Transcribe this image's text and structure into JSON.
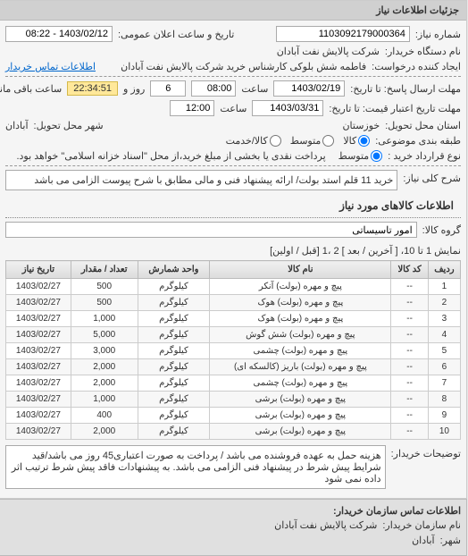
{
  "panel_title": "جزئیات اطلاعات نیاز",
  "top": {
    "req_no_label": "شماره نیاز:",
    "req_no": "1103092179000364",
    "datetime_label": "تاریخ و ساعت اعلان عمومی:",
    "datetime": "1403/02/12 - 08:22",
    "buyer_label": "نام دستگاه خریدار:",
    "buyer": "شرکت پالایش نفت آبادان",
    "requester_label": "ایجاد کننده درخواست:",
    "requester": "فاطمه شش بلوکی کارشناس خرید شرکت پالایش نفت آبادان",
    "contact_link": "اطلاعات تماس خریدار"
  },
  "deadline": {
    "resp_label": "مهلت ارسال پاسخ: تا تاریخ:",
    "resp_date": "1403/02/19",
    "time_label": "ساعت",
    "resp_time": "08:00",
    "days": "6",
    "days_label": "روز و",
    "remain": "22:34:51",
    "remain_label": "ساعت باقی مانده",
    "valid_label": "مهلت تاریخ اعتبار قیمت: تا تاریخ:",
    "valid_date": "1403/03/31",
    "valid_time": "12:00"
  },
  "location": {
    "province_label": "استان محل تحویل:",
    "province": "خوزستان",
    "city_label": "شهر محل تحویل:",
    "city": "آبادان"
  },
  "package": {
    "label": "طبقه بندی موضوعی:",
    "all": "کالا",
    "mid": "متوسط",
    "service": "کالا/خدمت"
  },
  "payment": {
    "label": "نوع قرارداد خرید :",
    "opt1": "متوسط",
    "note": "پرداخت نقدی یا بخشی از مبلغ خرید،از محل \"اسناد خزانه اسلامی\" خواهد بود."
  },
  "need": {
    "label": "شرح کلی نیاز:",
    "text": "خرید 11 قلم استد بولت/ ارائه پیشنهاد فنی و مالی مطابق با شرح پیوست الزامی می باشد"
  },
  "goods": {
    "heading": "اطلاعات کالاهای مورد نیاز",
    "group_label": "گروه کالا:",
    "group": "امور تاسیساتی",
    "pager_text": "نمایش 1 تا 10، [ آخرین / بعد ] 2 ،1  [قبل / اولین]",
    "columns": [
      "ردیف",
      "کد کالا",
      "نام کالا",
      "واحد شمارش",
      "تعداد / مقدار",
      "تاریخ نیاز"
    ],
    "rows": [
      [
        "1",
        "--",
        "پیچ و مهره (بولت) آنکر",
        "کیلوگرم",
        "500",
        "1403/02/27"
      ],
      [
        "2",
        "--",
        "پیچ و مهره (بولت) هوک",
        "کیلوگرم",
        "500",
        "1403/02/27"
      ],
      [
        "3",
        "--",
        "پیچ و مهره (بولت) هوک",
        "کیلوگرم",
        "1,000",
        "1403/02/27"
      ],
      [
        "4",
        "--",
        "پیچ و مهره (بولت) شش گوش",
        "کیلوگرم",
        "5,000",
        "1403/02/27"
      ],
      [
        "5",
        "--",
        "پیچ و مهره (بولت) چشمی",
        "کیلوگرم",
        "3,000",
        "1403/02/27"
      ],
      [
        "6",
        "--",
        "پیچ و مهره (بولت) باریز (کالسکه ای)",
        "کیلوگرم",
        "2,000",
        "1403/02/27"
      ],
      [
        "7",
        "--",
        "پیچ و مهره (بولت) چشمی",
        "کیلوگرم",
        "2,000",
        "1403/02/27"
      ],
      [
        "8",
        "--",
        "پیچ و مهره (بولت) برشی",
        "کیلوگرم",
        "1,000",
        "1403/02/27"
      ],
      [
        "9",
        "--",
        "پیچ و مهره (بولت) برشی",
        "کیلوگرم",
        "400",
        "1403/02/27"
      ],
      [
        "10",
        "--",
        "پیچ و مهره (بولت) برشی",
        "کیلوگرم",
        "2,000",
        "1403/02/27"
      ]
    ]
  },
  "buyer_note": {
    "label": "توضیحات خریدار:",
    "text": "هزینه حمل به عهده فروشنده می باشد / پرداخت به صورت اعتباری45 روز می باشد/قید شرایط پیش شرط در پیشنهاد فنی الزامی می باشد. به پیشنهادات فاقد پیش شرط ترتیب اثر داده نمی شود"
  },
  "footer": {
    "heading": "اطلاعات تماس سازمان خریدار:",
    "org_label": "نام سازمان خریدار:",
    "org": "شرکت پالایش نفت آبادان",
    "city_label": "شهر:",
    "city": "آبادان"
  }
}
